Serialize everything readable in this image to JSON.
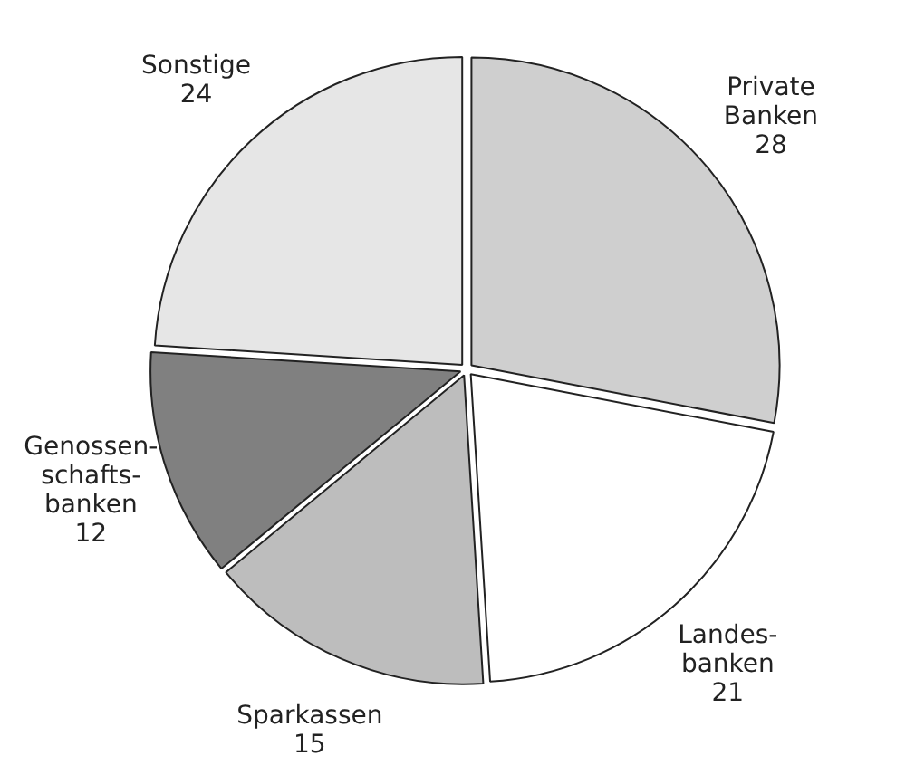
{
  "chart_data": {
    "type": "pie",
    "categories": [
      "Private\nBanken",
      "Landes-\nbanken",
      "Sparkassen",
      "Genossen-\nschafts-\nbanken",
      "Sonstige"
    ],
    "values": [
      28,
      21,
      15,
      12,
      24
    ],
    "colors": [
      "#cfcfcf",
      "#ffffff",
      "#bdbdbd",
      "#808080",
      "#e6e6e6"
    ],
    "data_labels": true,
    "legend": false
  }
}
